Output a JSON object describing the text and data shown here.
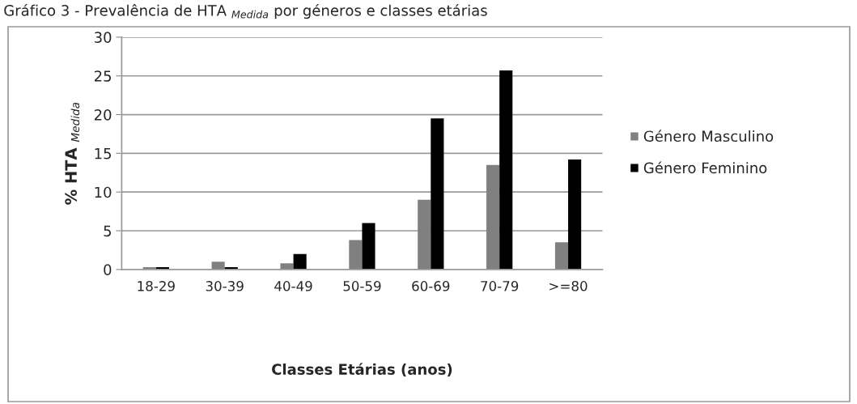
{
  "chart_data": {
    "type": "bar",
    "title": "Gráfico 3 - Prevalência de HTA $_{Medida}$ por géneros e classes etárias",
    "xlabel": "Classes Etárias (anos)",
    "ylabel": "% HTA $_{Medida}$",
    "categories": [
      "18-29",
      "30-39",
      "40-49",
      "50-59",
      "60-69",
      "70-79",
      ">=80"
    ],
    "series": [
      {
        "name": "Género Masculino",
        "color": "#808080",
        "values": [
          0.3,
          1.0,
          0.8,
          3.8,
          9.0,
          13.5,
          3.5
        ]
      },
      {
        "name": "Género Feminino",
        "color": "#000000",
        "values": [
          0.3,
          0.3,
          2.0,
          6.0,
          19.5,
          25.7,
          14.2
        ]
      }
    ],
    "ylim": [
      0,
      30
    ],
    "yticks": [
      0,
      5,
      10,
      15,
      20,
      25,
      30
    ],
    "grid": "y",
    "legend": "right"
  }
}
